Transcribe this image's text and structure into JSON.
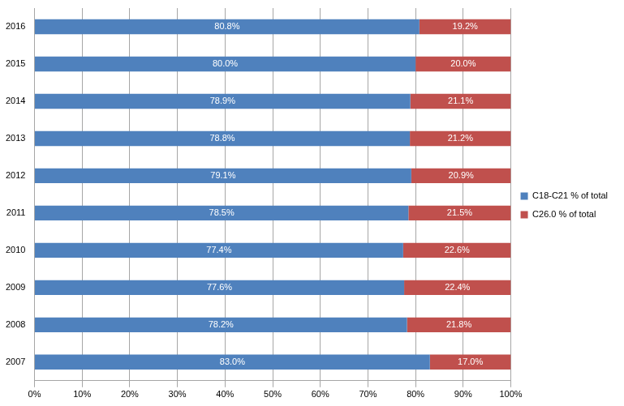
{
  "chart_data": {
    "type": "bar",
    "orientation": "horizontal",
    "stacked": true,
    "grid": true,
    "legend": "right",
    "data_labels": true,
    "categories": [
      "2016",
      "2015",
      "2014",
      "2013",
      "2012",
      "2011",
      "2010",
      "2009",
      "2008",
      "2007"
    ],
    "series": [
      {
        "name": "C18-C21 % of total",
        "color": "#4f81bd",
        "values": [
          80.8,
          80.0,
          78.9,
          78.8,
          79.1,
          78.5,
          77.4,
          77.6,
          78.2,
          83.0
        ],
        "value_labels": [
          "80.8%",
          "80.0%",
          "78.9%",
          "78.8%",
          "79.1%",
          "78.5%",
          "77.4%",
          "77.6%",
          "78.2%",
          "83.0%"
        ]
      },
      {
        "name": "C26.0 % of total",
        "color": "#c0504d",
        "values": [
          19.2,
          20.0,
          21.1,
          21.2,
          20.9,
          21.5,
          22.6,
          22.4,
          21.8,
          17.0
        ],
        "value_labels": [
          "19.2%",
          "20.0%",
          "21.1%",
          "21.2%",
          "20.9%",
          "21.5%",
          "22.6%",
          "22.4%",
          "21.8%",
          "17.0%"
        ]
      }
    ],
    "xlim": [
      0,
      100
    ],
    "xticks": [
      {
        "value": 0,
        "label": "0%"
      },
      {
        "value": 10,
        "label": "10%"
      },
      {
        "value": 20,
        "label": "20%"
      },
      {
        "value": 30,
        "label": "30%"
      },
      {
        "value": 40,
        "label": "40%"
      },
      {
        "value": 50,
        "label": "50%"
      },
      {
        "value": 60,
        "label": "60%"
      },
      {
        "value": 70,
        "label": "70%"
      },
      {
        "value": 80,
        "label": "80%"
      },
      {
        "value": 90,
        "label": "90%"
      },
      {
        "value": 100,
        "label": "100%"
      }
    ]
  }
}
